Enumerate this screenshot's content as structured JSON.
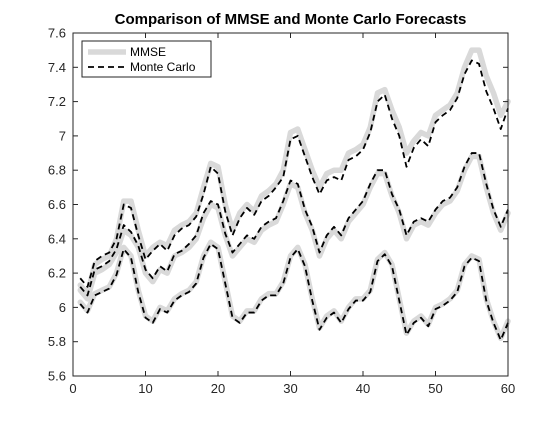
{
  "chart_data": {
    "type": "line",
    "title": "Comparison of MMSE and Monte Carlo Forecasts",
    "xlabel": "",
    "ylabel": "",
    "xlim": [
      0,
      60
    ],
    "ylim": [
      5.6,
      7.6
    ],
    "xticks": [
      0,
      10,
      20,
      30,
      40,
      50,
      60
    ],
    "yticks": [
      5.6,
      5.8,
      6,
      6.2,
      6.4,
      6.6,
      6.8,
      7,
      7.2,
      7.4,
      7.6
    ],
    "xtick_labels": [
      "0",
      "10",
      "20",
      "30",
      "40",
      "50",
      "60"
    ],
    "ytick_labels": [
      "5.6",
      "5.8",
      "6",
      "6.2",
      "6.4",
      "6.6",
      "6.8",
      "7",
      "7.2",
      "7.4",
      "7.6"
    ],
    "grid": false,
    "legend_position": "top-left",
    "legend": [
      {
        "label": "MMSE",
        "style": "solid",
        "color": "#d9d9d9"
      },
      {
        "label": "Monte Carlo",
        "style": "dashed",
        "color": "#000000"
      }
    ],
    "x": [
      1,
      2,
      3,
      4,
      5,
      6,
      7,
      8,
      9,
      10,
      11,
      12,
      13,
      14,
      15,
      16,
      17,
      18,
      19,
      20,
      21,
      22,
      23,
      24,
      25,
      26,
      27,
      28,
      29,
      30,
      31,
      32,
      33,
      34,
      35,
      36,
      37,
      38,
      39,
      40,
      41,
      42,
      43,
      44,
      45,
      46,
      47,
      48,
      49,
      50,
      51,
      52,
      53,
      54,
      55,
      56,
      57,
      58,
      59,
      60
    ],
    "series": [
      {
        "name": "MMSE",
        "role": "upper",
        "values": [
          6.13,
          6.08,
          6.25,
          6.28,
          6.3,
          6.4,
          6.62,
          6.62,
          6.45,
          6.3,
          6.35,
          6.38,
          6.36,
          6.45,
          6.48,
          6.5,
          6.55,
          6.7,
          6.84,
          6.82,
          6.6,
          6.45,
          6.55,
          6.6,
          6.56,
          6.65,
          6.68,
          6.72,
          6.8,
          7.02,
          7.04,
          6.92,
          6.8,
          6.7,
          6.78,
          6.8,
          6.8,
          6.9,
          6.92,
          6.95,
          7.05,
          7.25,
          7.27,
          7.15,
          7.05,
          6.9,
          6.97,
          7.02,
          7.0,
          7.12,
          7.15,
          7.18,
          7.25,
          7.4,
          7.5,
          7.5,
          7.35,
          7.25,
          7.12,
          7.2
        ]
      },
      {
        "name": "MMSE",
        "role": "middle",
        "values": [
          6.1,
          6.05,
          6.2,
          6.22,
          6.25,
          6.32,
          6.45,
          6.42,
          6.35,
          6.2,
          6.15,
          6.22,
          6.2,
          6.3,
          6.32,
          6.35,
          6.4,
          6.52,
          6.6,
          6.58,
          6.42,
          6.3,
          6.35,
          6.4,
          6.38,
          6.45,
          6.48,
          6.5,
          6.6,
          6.72,
          6.7,
          6.55,
          6.45,
          6.3,
          6.4,
          6.45,
          6.4,
          6.5,
          6.55,
          6.6,
          6.7,
          6.78,
          6.78,
          6.65,
          6.55,
          6.4,
          6.48,
          6.5,
          6.48,
          6.55,
          6.6,
          6.62,
          6.68,
          6.8,
          6.88,
          6.88,
          6.7,
          6.55,
          6.45,
          6.55
        ]
      },
      {
        "name": "MMSE",
        "role": "lower",
        "values": [
          6.03,
          5.98,
          6.08,
          6.1,
          6.12,
          6.2,
          6.35,
          6.3,
          6.1,
          5.95,
          5.92,
          6.0,
          5.98,
          6.05,
          6.08,
          6.1,
          6.15,
          6.3,
          6.38,
          6.35,
          6.15,
          5.95,
          5.92,
          5.98,
          5.98,
          6.05,
          6.08,
          6.08,
          6.15,
          6.3,
          6.35,
          6.25,
          6.05,
          5.88,
          5.95,
          5.98,
          5.92,
          6.0,
          6.05,
          6.05,
          6.1,
          6.28,
          6.32,
          6.25,
          6.05,
          5.85,
          5.92,
          5.95,
          5.9,
          6.0,
          6.02,
          6.05,
          6.1,
          6.25,
          6.3,
          6.28,
          6.05,
          5.92,
          5.82,
          5.92
        ]
      },
      {
        "name": "Monte Carlo",
        "role": "upper",
        "values": [
          6.17,
          6.12,
          6.27,
          6.3,
          6.32,
          6.4,
          6.6,
          6.58,
          6.42,
          6.28,
          6.33,
          6.37,
          6.33,
          6.42,
          6.46,
          6.48,
          6.53,
          6.66,
          6.82,
          6.78,
          6.56,
          6.42,
          6.52,
          6.58,
          6.54,
          6.62,
          6.65,
          6.7,
          6.76,
          6.98,
          7.0,
          6.88,
          6.76,
          6.66,
          6.74,
          6.76,
          6.74,
          6.86,
          6.88,
          6.92,
          7.02,
          7.2,
          7.24,
          7.1,
          7.0,
          6.82,
          6.93,
          6.98,
          6.94,
          7.08,
          7.12,
          7.15,
          7.22,
          7.36,
          7.44,
          7.42,
          7.26,
          7.16,
          7.04,
          7.16
        ]
      },
      {
        "name": "Monte Carlo",
        "role": "middle",
        "values": [
          6.12,
          6.07,
          6.22,
          6.24,
          6.27,
          6.34,
          6.48,
          6.44,
          6.36,
          6.22,
          6.17,
          6.24,
          6.21,
          6.31,
          6.33,
          6.37,
          6.42,
          6.55,
          6.62,
          6.6,
          6.43,
          6.32,
          6.37,
          6.42,
          6.4,
          6.47,
          6.5,
          6.52,
          6.62,
          6.74,
          6.72,
          6.57,
          6.47,
          6.32,
          6.42,
          6.47,
          6.42,
          6.52,
          6.57,
          6.62,
          6.72,
          6.8,
          6.8,
          6.66,
          6.57,
          6.42,
          6.5,
          6.52,
          6.5,
          6.57,
          6.62,
          6.64,
          6.7,
          6.82,
          6.9,
          6.9,
          6.72,
          6.57,
          6.47,
          6.57
        ]
      },
      {
        "name": "Monte Carlo",
        "role": "lower",
        "values": [
          6.02,
          5.97,
          6.07,
          6.09,
          6.11,
          6.19,
          6.34,
          6.29,
          6.09,
          5.94,
          5.91,
          5.99,
          5.97,
          6.04,
          6.07,
          6.09,
          6.14,
          6.29,
          6.37,
          6.34,
          6.14,
          5.94,
          5.91,
          5.97,
          5.97,
          6.04,
          6.07,
          6.07,
          6.14,
          6.29,
          6.34,
          6.24,
          6.04,
          5.87,
          5.94,
          5.97,
          5.91,
          5.99,
          6.04,
          6.04,
          6.09,
          6.27,
          6.31,
          6.24,
          6.04,
          5.84,
          5.91,
          5.94,
          5.89,
          5.99,
          6.01,
          6.04,
          6.09,
          6.24,
          6.29,
          6.27,
          6.04,
          5.91,
          5.81,
          5.91
        ]
      }
    ]
  }
}
